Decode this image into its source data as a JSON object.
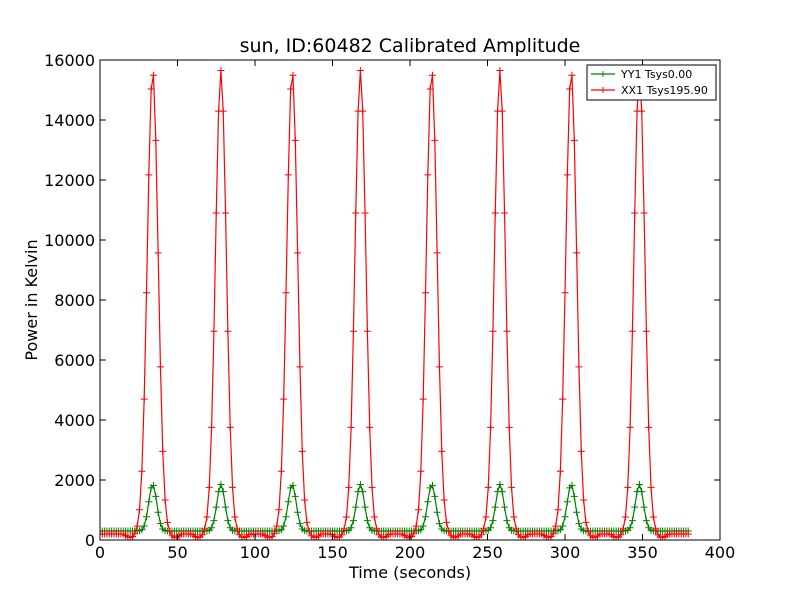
{
  "chart_data": {
    "type": "line",
    "title": "sun, ID:60482 Calibrated Amplitude",
    "xlabel": "Time (seconds)",
    "ylabel": "Power in Kelvin",
    "xlim": [
      0,
      400
    ],
    "ylim": [
      0,
      16000
    ],
    "x_ticks": [
      0,
      50,
      100,
      150,
      200,
      250,
      300,
      350,
      400
    ],
    "y_ticks": [
      0,
      2000,
      4000,
      6000,
      8000,
      10000,
      12000,
      14000,
      16000
    ],
    "grid": false,
    "legend_position": "top-right",
    "marker": "plus",
    "sample_interval": 1.5,
    "x_range": [
      0,
      380
    ],
    "series": [
      {
        "name": "YY1 Tsys0.00",
        "color": "#008000",
        "baseline": 300,
        "peak_value": 1850,
        "peak_width_sigma": 2.6,
        "peaks_x": [
          34,
          78,
          124,
          168,
          214,
          258,
          304,
          348
        ]
      },
      {
        "name": "XX1 Tsys195.90",
        "color": "#ff0000",
        "baseline": 200,
        "dip_value": 80,
        "peak_value": 15650,
        "peak_width_sigma": 3.5,
        "peaks_x": [
          34,
          78,
          124,
          168,
          214,
          258,
          304,
          348
        ]
      }
    ]
  }
}
